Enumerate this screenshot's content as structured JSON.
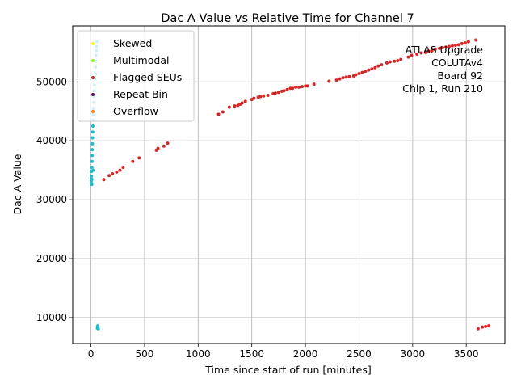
{
  "chart_data": {
    "type": "scatter",
    "title": "Dac A Value vs Relative Time for Channel 7",
    "xlabel": "Time since start of run [minutes]",
    "ylabel": "Dac A Value",
    "xlim": [
      -170,
      3860
    ],
    "ylim": [
      5600,
      59500
    ],
    "xticks": [
      0,
      500,
      1000,
      1500,
      2000,
      2500,
      3000,
      3500
    ],
    "yticks": [
      10000,
      20000,
      30000,
      40000,
      50000
    ],
    "xtick_labels": [
      "0",
      "500",
      "1000",
      "1500",
      "2000",
      "2500",
      "3000",
      "3500"
    ],
    "ytick_labels": [
      "10000",
      "20000",
      "30000",
      "40000",
      "50000"
    ],
    "grid": true,
    "legend_position": "top-left",
    "legend": [
      {
        "label": "Skewed",
        "color": "#ffff00"
      },
      {
        "label": "Multimodal",
        "color": "#7fff00"
      },
      {
        "label": "Flagged SEUs",
        "color": "#d62728"
      },
      {
        "label": "Repeat Bin",
        "color": "#660066"
      },
      {
        "label": "Overflow",
        "color": "#ff7f0e"
      }
    ],
    "annotation_lines": [
      "ATLAS Upgrade",
      "COLUTAv4",
      "Board 92",
      "Chip 1, Run 210"
    ],
    "series": [
      {
        "color": "#17becf",
        "points": [
          [
            5,
            32800
          ],
          [
            5,
            33300
          ],
          [
            5,
            34000
          ],
          [
            5,
            34800
          ],
          [
            8,
            33500
          ],
          [
            8,
            32600
          ],
          [
            10,
            35500
          ],
          [
            10,
            36500
          ],
          [
            12,
            37500
          ],
          [
            12,
            38500
          ],
          [
            14,
            39500
          ],
          [
            15,
            40500
          ],
          [
            17,
            41500
          ],
          [
            18,
            42500
          ],
          [
            20,
            43500
          ],
          [
            20,
            35000
          ],
          [
            22,
            44500
          ],
          [
            24,
            45500
          ],
          [
            26,
            46500
          ],
          [
            28,
            47500
          ],
          [
            30,
            48500
          ],
          [
            33,
            49500
          ],
          [
            36,
            50500
          ],
          [
            39,
            51500
          ],
          [
            42,
            52500
          ],
          [
            45,
            53500
          ],
          [
            48,
            54500
          ],
          [
            50,
            55300
          ],
          [
            52,
            56000
          ],
          [
            55,
            56800
          ],
          [
            60,
            8200
          ],
          [
            62,
            8400
          ],
          [
            64,
            8600
          ],
          [
            66,
            8300
          ],
          [
            68,
            8100
          ]
        ]
      },
      {
        "color": "#d62728",
        "points": [
          [
            120,
            33400
          ],
          [
            170,
            34100
          ],
          [
            200,
            34400
          ],
          [
            240,
            34700
          ],
          [
            270,
            35000
          ],
          [
            300,
            35500
          ],
          [
            390,
            36500
          ],
          [
            450,
            37100
          ],
          [
            610,
            38400
          ],
          [
            625,
            38700
          ],
          [
            680,
            39100
          ],
          [
            715,
            39600
          ],
          [
            1190,
            44500
          ],
          [
            1230,
            44900
          ],
          [
            1290,
            45700
          ],
          [
            1340,
            45900
          ],
          [
            1370,
            46000
          ],
          [
            1390,
            46200
          ],
          [
            1410,
            46400
          ],
          [
            1440,
            46700
          ],
          [
            1500,
            47000
          ],
          [
            1520,
            47200
          ],
          [
            1560,
            47400
          ],
          [
            1580,
            47500
          ],
          [
            1610,
            47600
          ],
          [
            1650,
            47700
          ],
          [
            1700,
            48000
          ],
          [
            1720,
            48100
          ],
          [
            1750,
            48200
          ],
          [
            1780,
            48400
          ],
          [
            1800,
            48500
          ],
          [
            1830,
            48700
          ],
          [
            1860,
            48900
          ],
          [
            1880,
            48900
          ],
          [
            1910,
            49100
          ],
          [
            1940,
            49100
          ],
          [
            1970,
            49200
          ],
          [
            2000,
            49300
          ],
          [
            2020,
            49300
          ],
          [
            2080,
            49600
          ],
          [
            2220,
            50100
          ],
          [
            2290,
            50300
          ],
          [
            2320,
            50500
          ],
          [
            2350,
            50700
          ],
          [
            2380,
            50800
          ],
          [
            2410,
            50900
          ],
          [
            2450,
            51000
          ],
          [
            2470,
            51200
          ],
          [
            2500,
            51400
          ],
          [
            2530,
            51600
          ],
          [
            2560,
            51800
          ],
          [
            2590,
            52000
          ],
          [
            2620,
            52200
          ],
          [
            2650,
            52400
          ],
          [
            2680,
            52700
          ],
          [
            2710,
            52900
          ],
          [
            2760,
            53200
          ],
          [
            2790,
            53400
          ],
          [
            2830,
            53500
          ],
          [
            2860,
            53600
          ],
          [
            2890,
            53800
          ],
          [
            2960,
            54200
          ],
          [
            2990,
            54500
          ],
          [
            3040,
            54700
          ],
          [
            3080,
            54900
          ],
          [
            3120,
            55000
          ],
          [
            3150,
            55200
          ],
          [
            3180,
            55300
          ],
          [
            3210,
            55500
          ],
          [
            3250,
            55700
          ],
          [
            3280,
            55800
          ],
          [
            3310,
            55900
          ],
          [
            3340,
            56000
          ],
          [
            3370,
            56100
          ],
          [
            3400,
            56200
          ],
          [
            3430,
            56300
          ],
          [
            3460,
            56500
          ],
          [
            3490,
            56600
          ],
          [
            3520,
            56800
          ],
          [
            3590,
            57100
          ],
          [
            3610,
            8100
          ],
          [
            3650,
            8400
          ],
          [
            3680,
            8500
          ],
          [
            3710,
            8600
          ]
        ]
      }
    ]
  }
}
